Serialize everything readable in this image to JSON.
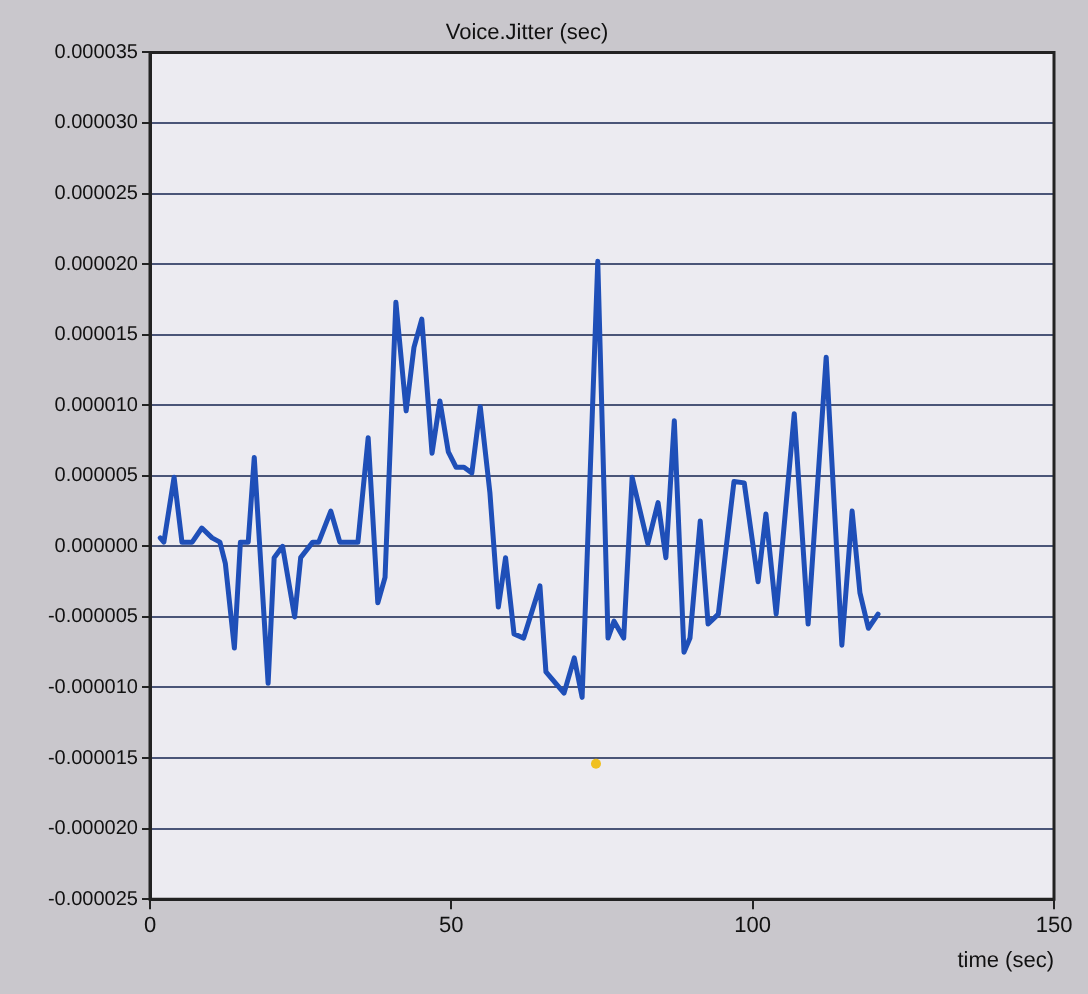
{
  "chart_data": {
    "type": "line",
    "title": "Voice.Jitter (sec)",
    "xlabel": "time (sec)",
    "xlim": [
      0,
      150
    ],
    "xticks": [
      0,
      50,
      100,
      150
    ],
    "ylim": [
      -2.5e-05,
      3.5e-05
    ],
    "yticks": [
      {
        "value": -2.5e-05,
        "label": "-0.000025"
      },
      {
        "value": -2e-05,
        "label": "-0.000020"
      },
      {
        "value": -1.5e-05,
        "label": "-0.000015"
      },
      {
        "value": -1e-05,
        "label": "-0.000010"
      },
      {
        "value": -5e-06,
        "label": "-0.000005"
      },
      {
        "value": 0,
        "label": "0.000000"
      },
      {
        "value": 5e-06,
        "label": "0.000005"
      },
      {
        "value": 1e-05,
        "label": "0.000010"
      },
      {
        "value": 1.5e-05,
        "label": "0.000015"
      },
      {
        "value": 2e-05,
        "label": "0.000020"
      },
      {
        "value": 2.5e-05,
        "label": "0.000025"
      },
      {
        "value": 3e-05,
        "label": "0.000030"
      },
      {
        "value": 3.5e-05,
        "label": "0.000035"
      }
    ],
    "grid": "y",
    "legend": false,
    "series": [
      {
        "color": "#1f4fb8",
        "marker": "none",
        "x": [
          1.7,
          2.3,
          4,
          5.3,
          7,
          8.6,
          10.3,
          11.6,
          12.5,
          14,
          15,
          16.3,
          17.3,
          19.6,
          20.6,
          22,
          24,
          25,
          27,
          28,
          30,
          31.5,
          33,
          34.5,
          36.2,
          37.8,
          39,
          40.8,
          42.5,
          43.8,
          45.1,
          46.8,
          48.1,
          49.5,
          50.8,
          52.1,
          53.4,
          54.8,
          56.4,
          57.8,
          59,
          60.4,
          62,
          64.7,
          65.7,
          68.7,
          70.4,
          71.7,
          74.3,
          76,
          77,
          78.6,
          80,
          82.6,
          84.3,
          85.6,
          87,
          88.6,
          89.6,
          91.3,
          92.6,
          94.3,
          96.9,
          98.6,
          100.9,
          102.2,
          103.9,
          106.9,
          109.2,
          112.2,
          114.8,
          116.5,
          117.8,
          119.2,
          120.8
        ],
        "values": [
          6e-07,
          3e-07,
          4.9e-06,
          3e-07,
          3e-07,
          1.3e-06,
          6e-07,
          3e-07,
          -1.2e-06,
          -7.2e-06,
          3e-07,
          3e-07,
          6.3e-06,
          -9.7e-06,
          -8e-07,
          0,
          -5e-06,
          -8e-07,
          3e-07,
          3e-07,
          2.5e-06,
          3e-07,
          3e-07,
          3e-07,
          7.7e-06,
          -4e-06,
          -2.2e-06,
          1.73e-05,
          9.6e-06,
          1.41e-05,
          1.61e-05,
          6.6e-06,
          1.03e-05,
          6.7e-06,
          5.6e-06,
          5.6e-06,
          5.2e-06,
          9.9e-06,
          3.8e-06,
          -4.3e-06,
          -8e-07,
          -6.2e-06,
          -6.5e-06,
          -2.8e-06,
          -8.9e-06,
          -1.04e-05,
          -7.9e-06,
          -1.07e-05,
          2.02e-05,
          -6.5e-06,
          -5.3e-06,
          -6.5e-06,
          4.9e-06,
          2e-07,
          3.1e-06,
          -8e-07,
          8.9e-06,
          -7.5e-06,
          -6.5e-06,
          1.8e-06,
          -5.5e-06,
          -4.8e-06,
          4.6e-06,
          4.5e-06,
          -2.5e-06,
          2.3e-06,
          -4.8e-06,
          9.4e-06,
          -5.5e-06,
          1.34e-05,
          -7e-06,
          2.5e-06,
          -3.3e-06,
          -5.8e-06,
          -4.8e-06
        ]
      },
      {
        "type": "scatter",
        "color": "#f0c020",
        "marker": "circle",
        "x": [
          74
        ],
        "values": [
          -1.54e-05
        ]
      }
    ]
  }
}
